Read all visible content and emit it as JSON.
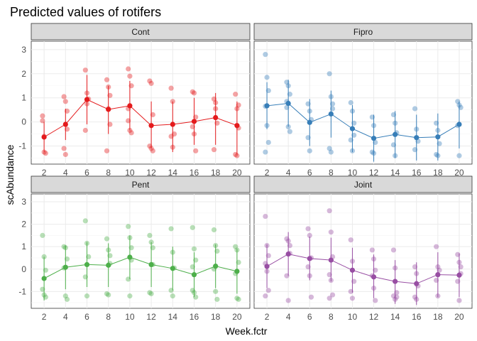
{
  "chart_data": {
    "type": "scatter",
    "title": "Predicted values of rotifers",
    "xlabel": "Week.fctr",
    "ylabel": "scAbundance",
    "categories": [
      "2",
      "4",
      "6",
      "8",
      "10",
      "12",
      "14",
      "16",
      "18",
      "20"
    ],
    "yticks": [
      "-1",
      "0",
      "1",
      "2",
      "3"
    ],
    "ylim": [
      -1.75,
      3.35
    ],
    "grid": true,
    "legend": "none",
    "panels": [
      {
        "name": "Cont",
        "color": "#e41a1c",
        "predicted": [
          -0.63,
          -0.1,
          0.93,
          0.52,
          0.67,
          -0.15,
          -0.1,
          0.02,
          0.18,
          -0.15
        ],
        "ci_low": [
          -1.25,
          -0.75,
          -0.1,
          -0.5,
          -0.35,
          -1.1,
          -1.25,
          -0.95,
          -0.95,
          -1.35
        ],
        "ci_high": [
          0.0,
          0.55,
          1.95,
          1.5,
          1.7,
          0.85,
          0.85,
          1.0,
          1.2,
          0.85
        ],
        "observed": [
          [
            0.25,
            -1.25,
            -1.3,
            0.05,
            -0.6
          ],
          [
            1.05,
            0.85,
            0.45,
            -1.1,
            -1.35,
            -0.3
          ],
          [
            2.15,
            1.2,
            0.95,
            -0.35,
            0.75
          ],
          [
            1.75,
            1.45,
            1.1,
            -1.2,
            0.55,
            -0.1
          ],
          [
            2.2,
            1.9,
            1.5,
            0.55,
            -0.35,
            -0.45,
            0.05
          ],
          [
            1.7,
            1.6,
            0.3,
            -1.0,
            -1.1,
            -1.2
          ],
          [
            1.4,
            0.85,
            -0.5,
            -0.6,
            -1.05
          ],
          [
            1.25,
            1.2,
            0.2,
            -0.2,
            -0.5,
            -1.2
          ],
          [
            0.95,
            0.55,
            -0.05,
            -1.15,
            0.8
          ],
          [
            1.15,
            0.55,
            -0.25,
            -1.35,
            -1.4,
            0.7
          ]
        ]
      },
      {
        "name": "Fipro",
        "color": "#377eb8",
        "predicted": [
          0.67,
          0.77,
          -0.02,
          0.33,
          -0.28,
          -0.68,
          -0.52,
          -0.65,
          -0.62,
          -0.1
        ],
        "ci_low": [
          -0.3,
          -0.2,
          -1.0,
          -0.65,
          -1.25,
          -1.65,
          -1.5,
          -1.6,
          -1.6,
          -1.1
        ],
        "ci_high": [
          1.65,
          1.75,
          0.95,
          1.3,
          0.7,
          0.3,
          0.45,
          0.3,
          0.35,
          0.85
        ],
        "observed": [
          [
            2.8,
            1.85,
            1.3,
            0.65,
            -0.15,
            -0.85,
            -1.25
          ],
          [
            1.65,
            1.5,
            1.15,
            0.85,
            -0.2,
            -0.4,
            0.6
          ],
          [
            0.75,
            0.45,
            0.1,
            -0.65,
            -1.2
          ],
          [
            2.0,
            1.05,
            0.75,
            -1.1,
            -1.25,
            0.55
          ],
          [
            0.8,
            0.45,
            -0.55,
            -0.75,
            -1.2,
            -0.05
          ],
          [
            0.2,
            -0.15,
            -0.85,
            -1.25,
            -1.3
          ],
          [
            0.3,
            -0.05,
            -0.45,
            -0.95,
            -1.4
          ],
          [
            0.55,
            -0.3,
            -0.8,
            -1.15
          ],
          [
            -0.05,
            -0.35,
            -0.9,
            -1.35,
            -1.4
          ],
          [
            0.85,
            0.7,
            0.6,
            -0.15,
            -1.4
          ]
        ]
      },
      {
        "name": "Pent",
        "color": "#4daf4a",
        "predicted": [
          -0.42,
          0.08,
          0.2,
          0.17,
          0.53,
          0.2,
          0.03,
          -0.25,
          0.13,
          -0.1
        ],
        "ci_low": [
          -1.4,
          -0.9,
          -0.8,
          -0.8,
          -0.45,
          -0.8,
          -0.95,
          -1.25,
          -0.85,
          -1.1
        ],
        "ci_high": [
          0.55,
          1.05,
          1.2,
          1.15,
          1.5,
          1.2,
          1.0,
          0.75,
          1.1,
          0.9
        ],
        "observed": [
          [
            1.5,
            0.55,
            -0.05,
            -0.9,
            -1.15,
            -1.25
          ],
          [
            1.0,
            0.95,
            0.45,
            0.05,
            -1.2,
            -1.35
          ],
          [
            2.15,
            1.15,
            0.55,
            -0.35,
            -1.2
          ],
          [
            1.35,
            0.85,
            0.25,
            -1.1,
            -1.15,
            0.6
          ],
          [
            1.9,
            1.4,
            0.95,
            -0.45,
            -1.2,
            0.4
          ],
          [
            1.5,
            1.2,
            0.95,
            -1.05,
            -1.1,
            0.2
          ],
          [
            1.8,
            0.75,
            0.05,
            -0.95,
            -1.2
          ],
          [
            1.85,
            0.9,
            0.4,
            -0.95,
            -1.05,
            -1.25,
            0.1
          ],
          [
            1.75,
            1.05,
            0.8,
            0.0,
            -1.0,
            -1.35
          ],
          [
            1.0,
            0.85,
            0.3,
            -0.2,
            -1.3,
            -1.35
          ]
        ]
      },
      {
        "name": "Joint",
        "color": "#984ea3",
        "predicted": [
          0.12,
          0.67,
          0.47,
          0.4,
          -0.05,
          -0.35,
          -0.55,
          -0.65,
          -0.25,
          -0.27
        ],
        "ci_low": [
          -0.85,
          -0.3,
          -0.5,
          -0.55,
          -1.05,
          -1.3,
          -1.55,
          -1.6,
          -1.25,
          -1.25
        ],
        "ci_high": [
          1.1,
          1.65,
          1.45,
          1.4,
          0.95,
          0.65,
          0.4,
          0.3,
          0.75,
          0.7
        ],
        "observed": [
          [
            2.35,
            1.05,
            0.6,
            0.25,
            -0.1,
            -0.95,
            -1.2
          ],
          [
            1.35,
            1.25,
            0.7,
            -0.3,
            -1.4,
            1.05
          ],
          [
            1.8,
            1.5,
            0.5,
            0.1,
            -0.3,
            -1.25
          ],
          [
            2.6,
            1.65,
            0.55,
            -0.25,
            -0.5,
            -1.15,
            -1.3
          ],
          [
            1.3,
            0.35,
            -0.55,
            -1.0,
            -1.3
          ],
          [
            0.85,
            0.45,
            -0.05,
            -0.3,
            -0.85,
            -1.4
          ],
          [
            0.85,
            0.05,
            -1.05,
            -1.2,
            -1.35,
            -1.25
          ],
          [
            0.1,
            -0.2,
            -0.75,
            -1.25,
            -1.35
          ],
          [
            1.0,
            0.1,
            -0.05,
            -0.5,
            -1.2
          ],
          [
            0.65,
            0.3,
            -0.2,
            -0.55,
            -1.4,
            0.1
          ]
        ]
      }
    ]
  }
}
